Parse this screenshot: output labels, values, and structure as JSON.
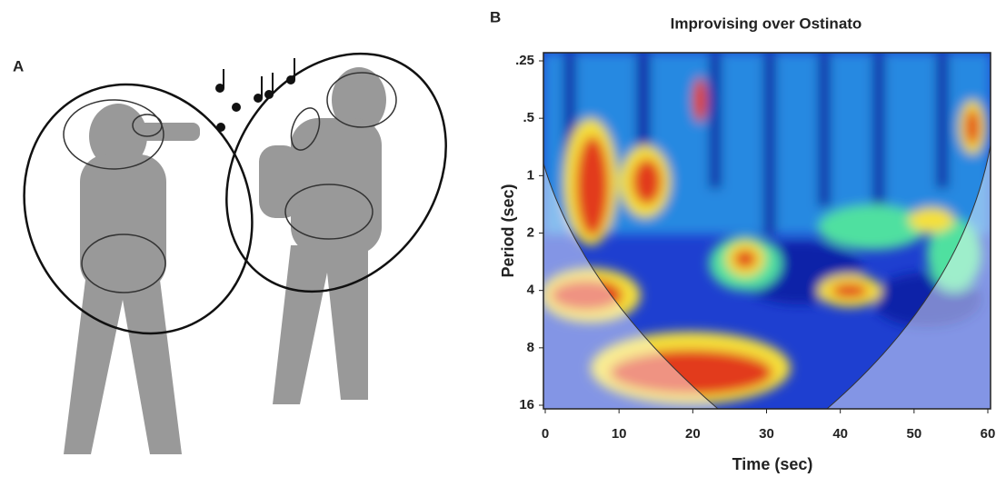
{
  "panel_labels": [
    "A",
    "B"
  ],
  "chart_data": {
    "type": "heatmap",
    "title": "Improvising over Ostinato",
    "xlabel": "Time (sec)",
    "ylabel": "Period (sec)",
    "xlim": [
      0,
      60
    ],
    "xticks": [
      0,
      10,
      20,
      30,
      40,
      50,
      60
    ],
    "ylim": [
      0.25,
      16
    ],
    "ylog": true,
    "y_inverted": true,
    "yticks": [
      {
        "value": 0.25,
        "label": ".25"
      },
      {
        "value": 0.5,
        "label": ".5"
      },
      1,
      2,
      4,
      8,
      16
    ]
  }
}
